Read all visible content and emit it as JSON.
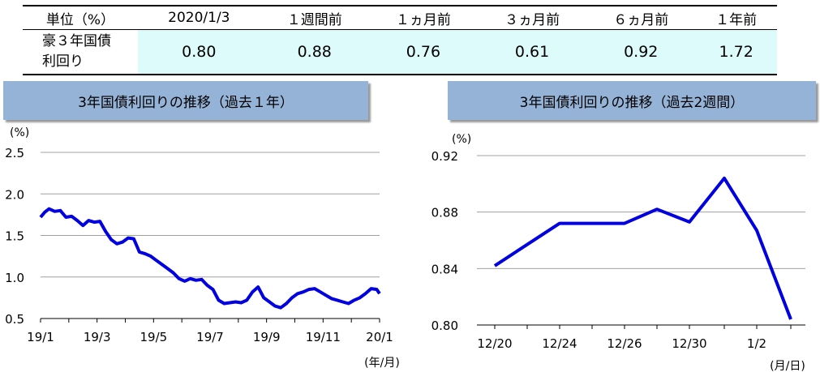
{
  "table": {
    "headers": [
      "単位（%）",
      "2020/1/3",
      "１週間前",
      "１ヵ月前",
      "３ヵ月前",
      "６ヵ月前",
      "１年前"
    ],
    "row_label_line1": "豪３年国債",
    "row_label_line2": "利回り",
    "values": [
      "0.80",
      "0.88",
      "0.76",
      "0.61",
      "0.92",
      "1.72"
    ]
  },
  "chart_data": [
    {
      "type": "line",
      "title": "3年国債利回りの推移（過去１年）",
      "unit_label": "(%)",
      "xlabel_unit": "(年/月)",
      "ylim": [
        0.5,
        2.5
      ],
      "yticks": [
        "2.5",
        "2.0",
        "1.5",
        "1.0",
        "0.5"
      ],
      "ytick_values": [
        2.5,
        2.0,
        1.5,
        1.0,
        0.5
      ],
      "xticks": [
        "19/1",
        "19/3",
        "19/5",
        "19/7",
        "19/9",
        "19/11",
        "20/1"
      ],
      "grid": true,
      "color": "#0000e0",
      "x": [
        0,
        0.15,
        0.3,
        0.5,
        0.7,
        0.9,
        1.1,
        1.3,
        1.5,
        1.7,
        1.9,
        2.1,
        2.3,
        2.5,
        2.7,
        2.9,
        3.1,
        3.3,
        3.5,
        3.7,
        3.9,
        4.1,
        4.3,
        4.5,
        4.7,
        4.9,
        5.1,
        5.3,
        5.5,
        5.7,
        5.9,
        6.1,
        6.3,
        6.5,
        6.7,
        6.9,
        7.1,
        7.3,
        7.5,
        7.7,
        7.9,
        8.1,
        8.3,
        8.5,
        8.7,
        8.9,
        9.1,
        9.3,
        9.5,
        9.7,
        9.9,
        10.1,
        10.3,
        10.5,
        10.7,
        10.9,
        11.1,
        11.3,
        11.5,
        11.7,
        11.9,
        12.0
      ],
      "y": [
        1.72,
        1.78,
        1.82,
        1.79,
        1.8,
        1.72,
        1.73,
        1.68,
        1.62,
        1.68,
        1.66,
        1.67,
        1.55,
        1.45,
        1.4,
        1.42,
        1.47,
        1.46,
        1.3,
        1.28,
        1.25,
        1.2,
        1.15,
        1.1,
        1.05,
        0.98,
        0.95,
        0.98,
        0.96,
        0.97,
        0.9,
        0.85,
        0.72,
        0.68,
        0.69,
        0.7,
        0.69,
        0.72,
        0.82,
        0.88,
        0.75,
        0.7,
        0.65,
        0.63,
        0.68,
        0.75,
        0.8,
        0.82,
        0.85,
        0.86,
        0.82,
        0.78,
        0.74,
        0.72,
        0.7,
        0.68,
        0.72,
        0.75,
        0.8,
        0.86,
        0.85,
        0.8
      ]
    },
    {
      "type": "line",
      "title": "3年国債利回りの推移（過去2週間）",
      "unit_label": "(%)",
      "xlabel_unit": "(月/日)",
      "ylim": [
        0.8,
        0.92
      ],
      "yticks": [
        "0.92",
        "0.88",
        "0.84",
        "0.80"
      ],
      "ytick_values": [
        0.92,
        0.88,
        0.84,
        0.8
      ],
      "xticks": [
        "12/20",
        "12/24",
        "12/26",
        "12/30",
        "1/2"
      ],
      "grid": true,
      "color": "#0000e0",
      "x": [
        "12/20",
        "12/23",
        "12/24",
        "12/26",
        "12/27",
        "12/30",
        "12/31",
        "1/2",
        "1/3"
      ],
      "y": [
        0.842,
        0.857,
        0.872,
        0.872,
        0.882,
        0.873,
        0.904,
        0.867,
        0.804
      ]
    }
  ]
}
